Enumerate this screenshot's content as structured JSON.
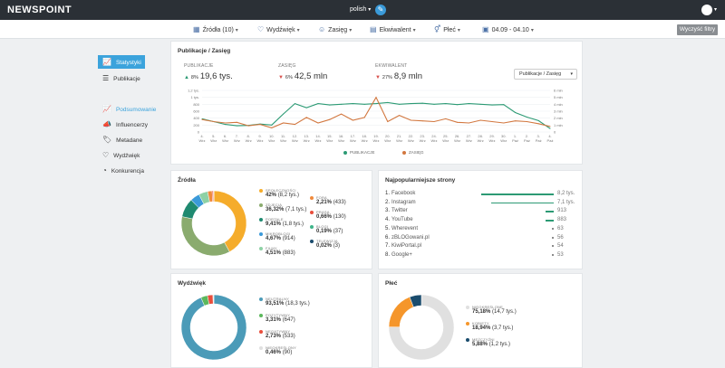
{
  "header": {
    "logo": "NEWSPOINT",
    "language": "polish"
  },
  "filters": {
    "sources": "Źródła (10)",
    "sentiment": "Wydźwięk",
    "reach": "Zasięg",
    "equivalent": "Ekwiwalent",
    "gender": "Płeć",
    "dates": "04.09 - 04.10",
    "clear": "Wyczyść filtry"
  },
  "sidebar": {
    "items": [
      {
        "label": "Statystyki",
        "icon": "chart-icon"
      },
      {
        "label": "Publikacje",
        "icon": "list-icon"
      },
      {
        "label": "Podsumowanie",
        "icon": "chart-icon"
      },
      {
        "label": "Influencerzy",
        "icon": "megaphone-icon"
      },
      {
        "label": "Metadane",
        "icon": "tags-icon"
      },
      {
        "label": "Wydźwięk",
        "icon": "heart-icon"
      },
      {
        "label": "Konkurencja",
        "icon": "pie-icon"
      }
    ]
  },
  "pub_card": {
    "title": "Publikacje / Zasięg",
    "select": "Publikacje / Zasięg",
    "kpis": [
      {
        "label": "PUBLIKACJE",
        "pct": "8%",
        "value": "19,6 tys.",
        "trend": "up"
      },
      {
        "label": "ZASIĘG",
        "pct": "6%",
        "value": "42,5 mln",
        "trend": "down"
      },
      {
        "label": "EKWIWALENT",
        "pct": "27%",
        "value": "8,9 mln",
        "trend": "down"
      }
    ],
    "legend": {
      "pub": "PUBLIKACJE",
      "reach": "ZASIĘG"
    }
  },
  "chart_data": {
    "type": "line",
    "x": [
      "4. Wrz",
      "5. Wrz",
      "6. Wrz",
      "7. Wrz",
      "8. Wrz",
      "9. Wrz",
      "10. Wrz",
      "11. Wrz",
      "12. Wrz",
      "13. Wrz",
      "14. Wrz",
      "15. Wrz",
      "16. Wrz",
      "17. Wrz",
      "18. Wrz",
      "19. Wrz",
      "20. Wrz",
      "21. Wrz",
      "22. Wrz",
      "23. Wrz",
      "24. Wrz",
      "25. Wrz",
      "26. Wrz",
      "27. Wrz",
      "28. Wrz",
      "29. Wrz",
      "30. Wrz",
      "1. Paź",
      "2. Paź",
      "3. Paź",
      "4. Paź"
    ],
    "y_left_ticks": [
      "1,2 tys.",
      "1 tys.",
      "800",
      "600",
      "400",
      "200",
      "0"
    ],
    "y_right_ticks": [
      "6 mln",
      "5 mln",
      "4 mln",
      "3 mln",
      "2 mln",
      "1 mln",
      "0"
    ],
    "ylim_left": [
      0,
      1200
    ],
    "ylim_right": [
      0,
      6000000
    ],
    "series": [
      {
        "name": "PUBLIKACJE",
        "color": "#2c9a74",
        "axis": "left",
        "values": [
          380,
          300,
          220,
          180,
          190,
          230,
          200,
          520,
          820,
          700,
          820,
          780,
          800,
          820,
          800,
          820,
          850,
          800,
          820,
          830,
          800,
          820,
          790,
          820,
          800,
          780,
          790,
          560,
          430,
          330,
          100
        ]
      },
      {
        "name": "ZASIĘG",
        "color": "#d2773f",
        "axis": "right",
        "values": [
          1800000,
          1500000,
          1300000,
          1400000,
          900000,
          1100000,
          600000,
          1300000,
          1100000,
          2100000,
          1300000,
          1800000,
          2600000,
          1700000,
          2100000,
          5000000,
          1500000,
          2400000,
          1700000,
          1600000,
          1500000,
          1900000,
          1400000,
          1300000,
          1700000,
          1500000,
          1300000,
          1600000,
          1500000,
          1200000,
          800000
        ]
      }
    ]
  },
  "sources": {
    "title": "Źródła",
    "items": [
      {
        "label": "SPOŁECZNOŚCI",
        "value": "42%",
        "detail": "(8,2 tys.)",
        "color": "#f5ac2b"
      },
      {
        "label": "ZDJĘCIA",
        "value": "36,32%",
        "detail": "(7,1 tys.)",
        "color": "#8aab6e"
      },
      {
        "label": "PORTALE",
        "value": "9,41%",
        "detail": "(1,8 tys.)",
        "color": "#1f8a70"
      },
      {
        "label": "MIKROBLOGI",
        "value": "4,67%",
        "detail": "(914)",
        "color": "#3b9ad9"
      },
      {
        "label": "FILMY",
        "value": "4,51%",
        "detail": "(883)",
        "color": "#8ed1a5"
      },
      {
        "label": "FORA",
        "value": "2,21%",
        "detail": "(433)",
        "color": "#f08a3c"
      },
      {
        "label": "PRASA",
        "value": "0,66%",
        "detail": "(130)",
        "color": "#e94e3c"
      },
      {
        "label": "BLOGI",
        "value": "0,19%",
        "detail": "(37)",
        "color": "#3fb58a"
      },
      {
        "label": "TELEWIZJA",
        "value": "0,02%",
        "detail": "(3)",
        "color": "#1a4c6d"
      }
    ],
    "percents": [
      42,
      36.32,
      9.41,
      4.67,
      4.51,
      2.21,
      0.66,
      0.19,
      0.02
    ]
  },
  "sites": {
    "title": "Najpopularniejsze strony",
    "items": [
      {
        "num": "1.",
        "name": "Facebook",
        "count": "8,2 tys.",
        "value": 8200
      },
      {
        "num": "2.",
        "name": "Instagram",
        "count": "7,1 tys.",
        "value": 7100
      },
      {
        "num": "3.",
        "name": "Twitter",
        "count": "913",
        "value": 913
      },
      {
        "num": "4.",
        "name": "YouTube",
        "count": "883",
        "value": 883
      },
      {
        "num": "5.",
        "name": "Wherevent",
        "count": "63",
        "value": 63
      },
      {
        "num": "6.",
        "name": "zBLOGowani.pl",
        "count": "56",
        "value": 56
      },
      {
        "num": "7.",
        "name": "KiwiPortal.pl",
        "count": "54",
        "value": 54
      },
      {
        "num": "8.",
        "name": "Google+",
        "count": "53",
        "value": 53
      }
    ]
  },
  "sentiment": {
    "title": "Wydźwięk",
    "items": [
      {
        "label": "NEUTRALNY",
        "value": "93,51%",
        "detail": "(18,3 tys.)",
        "color": "#4b9bb8"
      },
      {
        "label": "POZYTYWNY",
        "value": "3,31%",
        "detail": "(647)",
        "color": "#5cb85c"
      },
      {
        "label": "NEGATYWNY",
        "value": "2,73%",
        "detail": "(533)",
        "color": "#e94e3c"
      },
      {
        "label": "NIEOKREŚLONY",
        "value": "0,46%",
        "detail": "(90)",
        "color": "#e0e0e0"
      }
    ],
    "percents": [
      93.51,
      3.31,
      2.73,
      0.46
    ]
  },
  "gender": {
    "title": "Płeć",
    "items": [
      {
        "label": "NIEOKREŚLONE",
        "value": "75,18%",
        "detail": "(14,7 tys.)",
        "color": "#e0e0e0"
      },
      {
        "label": "KOBIETY",
        "value": "18,94%",
        "detail": "(3,7 tys.)",
        "color": "#f5962b"
      },
      {
        "label": "MĘŻCZYŹNI",
        "value": "5,88%",
        "detail": "(1,2 tys.)",
        "color": "#1a4c6d"
      }
    ],
    "percents": [
      75.18,
      18.94,
      5.88
    ]
  }
}
